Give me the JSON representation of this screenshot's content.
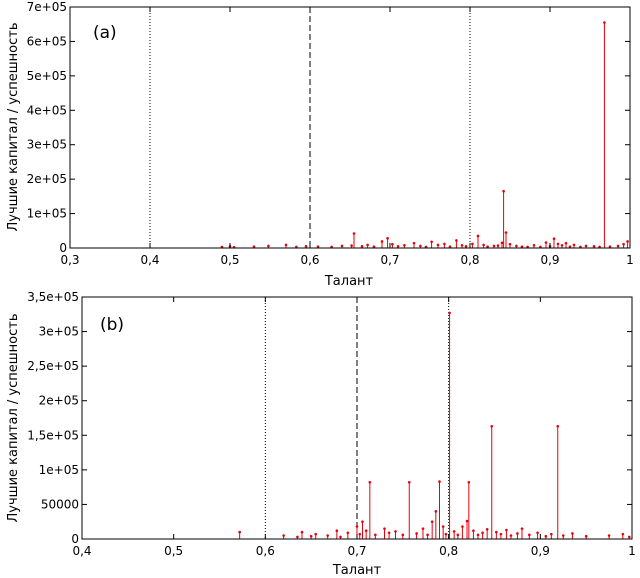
{
  "chart_data": [
    {
      "type": "scatter",
      "panel_label": "(a)",
      "xlabel": "Талант",
      "ylabel": "Лучшие капитал / успешность",
      "xlim": [
        0.3,
        1.0
      ],
      "ylim": [
        0,
        700000
      ],
      "x_ticks": [
        0.3,
        0.4,
        0.5,
        0.6,
        0.7,
        0.8,
        0.9,
        1.0
      ],
      "x_tick_labels": [
        "0,3",
        "0,4",
        "0,5",
        "0,6",
        "0,7",
        "0,8",
        "0,9",
        "1"
      ],
      "y_ticks": [
        0,
        100000,
        200000,
        300000,
        400000,
        500000,
        600000,
        700000
      ],
      "y_tick_labels": [
        "0",
        "1e+05",
        "2e+05",
        "3e+05",
        "4e+05",
        "5e+05",
        "6e+05",
        "7e+05"
      ],
      "vlines": [
        {
          "x": 0.4,
          "style": "dotted"
        },
        {
          "x": 0.6,
          "style": "dashed"
        },
        {
          "x": 0.8,
          "style": "dotted"
        }
      ],
      "series": [
        {
          "color": "#e8000b",
          "points": [
            [
              0.49,
              3000
            ],
            [
              0.5,
              5000
            ],
            [
              0.505,
              2000
            ],
            [
              0.53,
              4000
            ],
            [
              0.548,
              6000
            ],
            [
              0.57,
              9000
            ],
            [
              0.583,
              3000
            ],
            [
              0.595,
              5000
            ],
            [
              0.61,
              4000
            ],
            [
              0.627,
              3000
            ],
            [
              0.64,
              6000
            ],
            [
              0.652,
              7000
            ],
            [
              0.655,
              42000
            ],
            [
              0.665,
              5000
            ],
            [
              0.672,
              9000
            ],
            [
              0.68,
              4000
            ],
            [
              0.69,
              19000
            ],
            [
              0.697,
              28000
            ],
            [
              0.703,
              11000
            ],
            [
              0.71,
              5000
            ],
            [
              0.718,
              8000
            ],
            [
              0.73,
              14000
            ],
            [
              0.738,
              6000
            ],
            [
              0.745,
              3000
            ],
            [
              0.752,
              18000
            ],
            [
              0.76,
              9000
            ],
            [
              0.768,
              12000
            ],
            [
              0.775,
              4000
            ],
            [
              0.783,
              22000
            ],
            [
              0.79,
              8000
            ],
            [
              0.795,
              5000
            ],
            [
              0.803,
              12000
            ],
            [
              0.81,
              35000
            ],
            [
              0.817,
              9000
            ],
            [
              0.822,
              4000
            ],
            [
              0.83,
              6000
            ],
            [
              0.835,
              7000
            ],
            [
              0.84,
              15000
            ],
            [
              0.842,
              165000
            ],
            [
              0.845,
              45000
            ],
            [
              0.85,
              11000
            ],
            [
              0.858,
              6000
            ],
            [
              0.865,
              4000
            ],
            [
              0.872,
              3000
            ],
            [
              0.88,
              8000
            ],
            [
              0.888,
              3000
            ],
            [
              0.895,
              16000
            ],
            [
              0.9,
              5000
            ],
            [
              0.905,
              27000
            ],
            [
              0.91,
              12000
            ],
            [
              0.915,
              8000
            ],
            [
              0.92,
              14000
            ],
            [
              0.925,
              4000
            ],
            [
              0.93,
              9000
            ],
            [
              0.938,
              3000
            ],
            [
              0.945,
              6000
            ],
            [
              0.955,
              5000
            ],
            [
              0.962,
              3000
            ],
            [
              0.968,
              655000
            ],
            [
              0.975,
              4000
            ],
            [
              0.985,
              6000
            ],
            [
              0.992,
              11000
            ],
            [
              0.997,
              19000
            ]
          ]
        }
      ]
    },
    {
      "type": "scatter",
      "panel_label": "(b)",
      "xlabel": "Талант",
      "ylabel": "Лучшие капитал / успешность",
      "xlim": [
        0.4,
        1.0
      ],
      "ylim": [
        0,
        350000
      ],
      "x_ticks": [
        0.4,
        0.5,
        0.6,
        0.7,
        0.8,
        0.9,
        1.0
      ],
      "x_tick_labels": [
        "0,4",
        "0,5",
        "0,6",
        "0,7",
        "0,8",
        "0,9",
        "1"
      ],
      "y_ticks": [
        0,
        50000,
        100000,
        150000,
        200000,
        250000,
        300000,
        350000
      ],
      "y_tick_labels": [
        "0",
        "50000",
        "1e+05",
        "1,5e+05",
        "2e+05",
        "2,5e+05",
        "3e+05",
        "3,5e+05"
      ],
      "vlines": [
        {
          "x": 0.6,
          "style": "dotted"
        },
        {
          "x": 0.7,
          "style": "dashed"
        },
        {
          "x": 0.8,
          "style": "dotted"
        }
      ],
      "series": [
        {
          "color": "#e8000b",
          "points": [
            [
              0.572,
              10000
            ],
            [
              0.62,
              5000
            ],
            [
              0.635,
              3000
            ],
            [
              0.64,
              10000
            ],
            [
              0.65,
              4000
            ],
            [
              0.655,
              7000
            ],
            [
              0.668,
              5000
            ],
            [
              0.678,
              12000
            ],
            [
              0.682,
              3000
            ],
            [
              0.69,
              9000
            ],
            [
              0.7,
              18000
            ],
            [
              0.703,
              7000
            ],
            [
              0.706,
              25000
            ],
            [
              0.71,
              12000
            ],
            [
              0.714,
              82000
            ],
            [
              0.72,
              6000
            ],
            [
              0.73,
              15000
            ],
            [
              0.735,
              9000
            ],
            [
              0.742,
              11000
            ],
            [
              0.75,
              6000
            ],
            [
              0.757,
              82000
            ],
            [
              0.765,
              8000
            ],
            [
              0.772,
              15000
            ],
            [
              0.777,
              6000
            ],
            [
              0.782,
              25000
            ],
            [
              0.786,
              40000
            ],
            [
              0.79,
              83000
            ],
            [
              0.794,
              18000
            ],
            [
              0.797,
              7000
            ],
            [
              0.801,
              327000
            ],
            [
              0.806,
              11000
            ],
            [
              0.81,
              6000
            ],
            [
              0.815,
              18000
            ],
            [
              0.82,
              26000
            ],
            [
              0.822,
              82000
            ],
            [
              0.827,
              12000
            ],
            [
              0.832,
              6000
            ],
            [
              0.837,
              9000
            ],
            [
              0.842,
              14000
            ],
            [
              0.847,
              163000
            ],
            [
              0.852,
              10000
            ],
            [
              0.857,
              7000
            ],
            [
              0.863,
              13000
            ],
            [
              0.868,
              5000
            ],
            [
              0.875,
              8000
            ],
            [
              0.88,
              15000
            ],
            [
              0.888,
              6000
            ],
            [
              0.897,
              9000
            ],
            [
              0.906,
              4000
            ],
            [
              0.912,
              7000
            ],
            [
              0.919,
              163000
            ],
            [
              0.925,
              5000
            ],
            [
              0.935,
              8000
            ],
            [
              0.95,
              4000
            ],
            [
              0.975,
              5000
            ],
            [
              0.99,
              7000
            ],
            [
              0.997,
              3000
            ]
          ]
        }
      ]
    }
  ]
}
